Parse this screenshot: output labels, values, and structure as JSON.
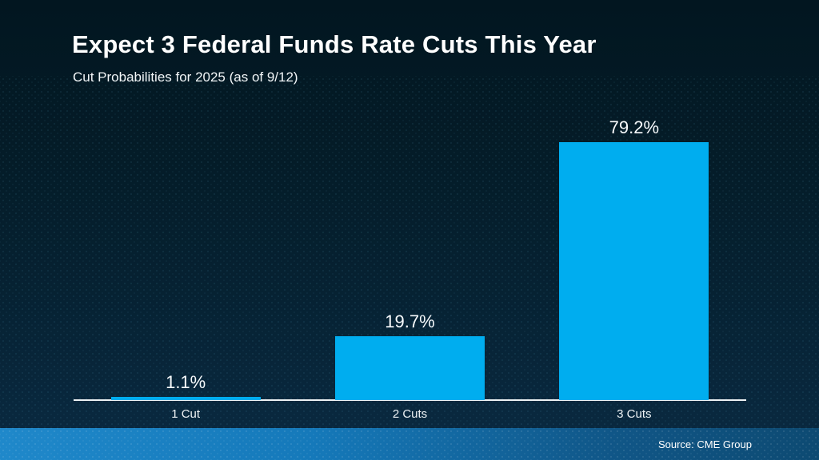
{
  "header": {
    "title": "Expect 3 Federal Funds Rate Cuts This Year",
    "subtitle": "Cut Probabilities for 2025 (as of 9/12)"
  },
  "chart_data": {
    "type": "bar",
    "title": "Expect 3 Federal Funds Rate Cuts This Year",
    "subtitle": "Cut Probabilities for 2025 (as of 9/12)",
    "categories": [
      "1 Cut",
      "2 Cuts",
      "3 Cuts"
    ],
    "values": [
      1.1,
      19.7,
      79.2
    ],
    "value_labels": [
      "1.1%",
      "19.7%",
      "79.2%"
    ],
    "xlabel": "",
    "ylabel": "",
    "ylim": [
      0,
      100
    ],
    "grid": false,
    "legend": false,
    "bar_color": "#00ADEF",
    "axis_color": "#EDF2F4"
  },
  "footer": {
    "source": "Source: CME Group"
  },
  "colors": {
    "background_top": "#021620",
    "background_bottom": "#0A2A42",
    "bar": "#00ADEF",
    "axis": "#EDF2F4",
    "text": "#FFFFFF",
    "footer_gradient_left": "#1F88CA",
    "footer_gradient_right": "#0D4A72"
  }
}
